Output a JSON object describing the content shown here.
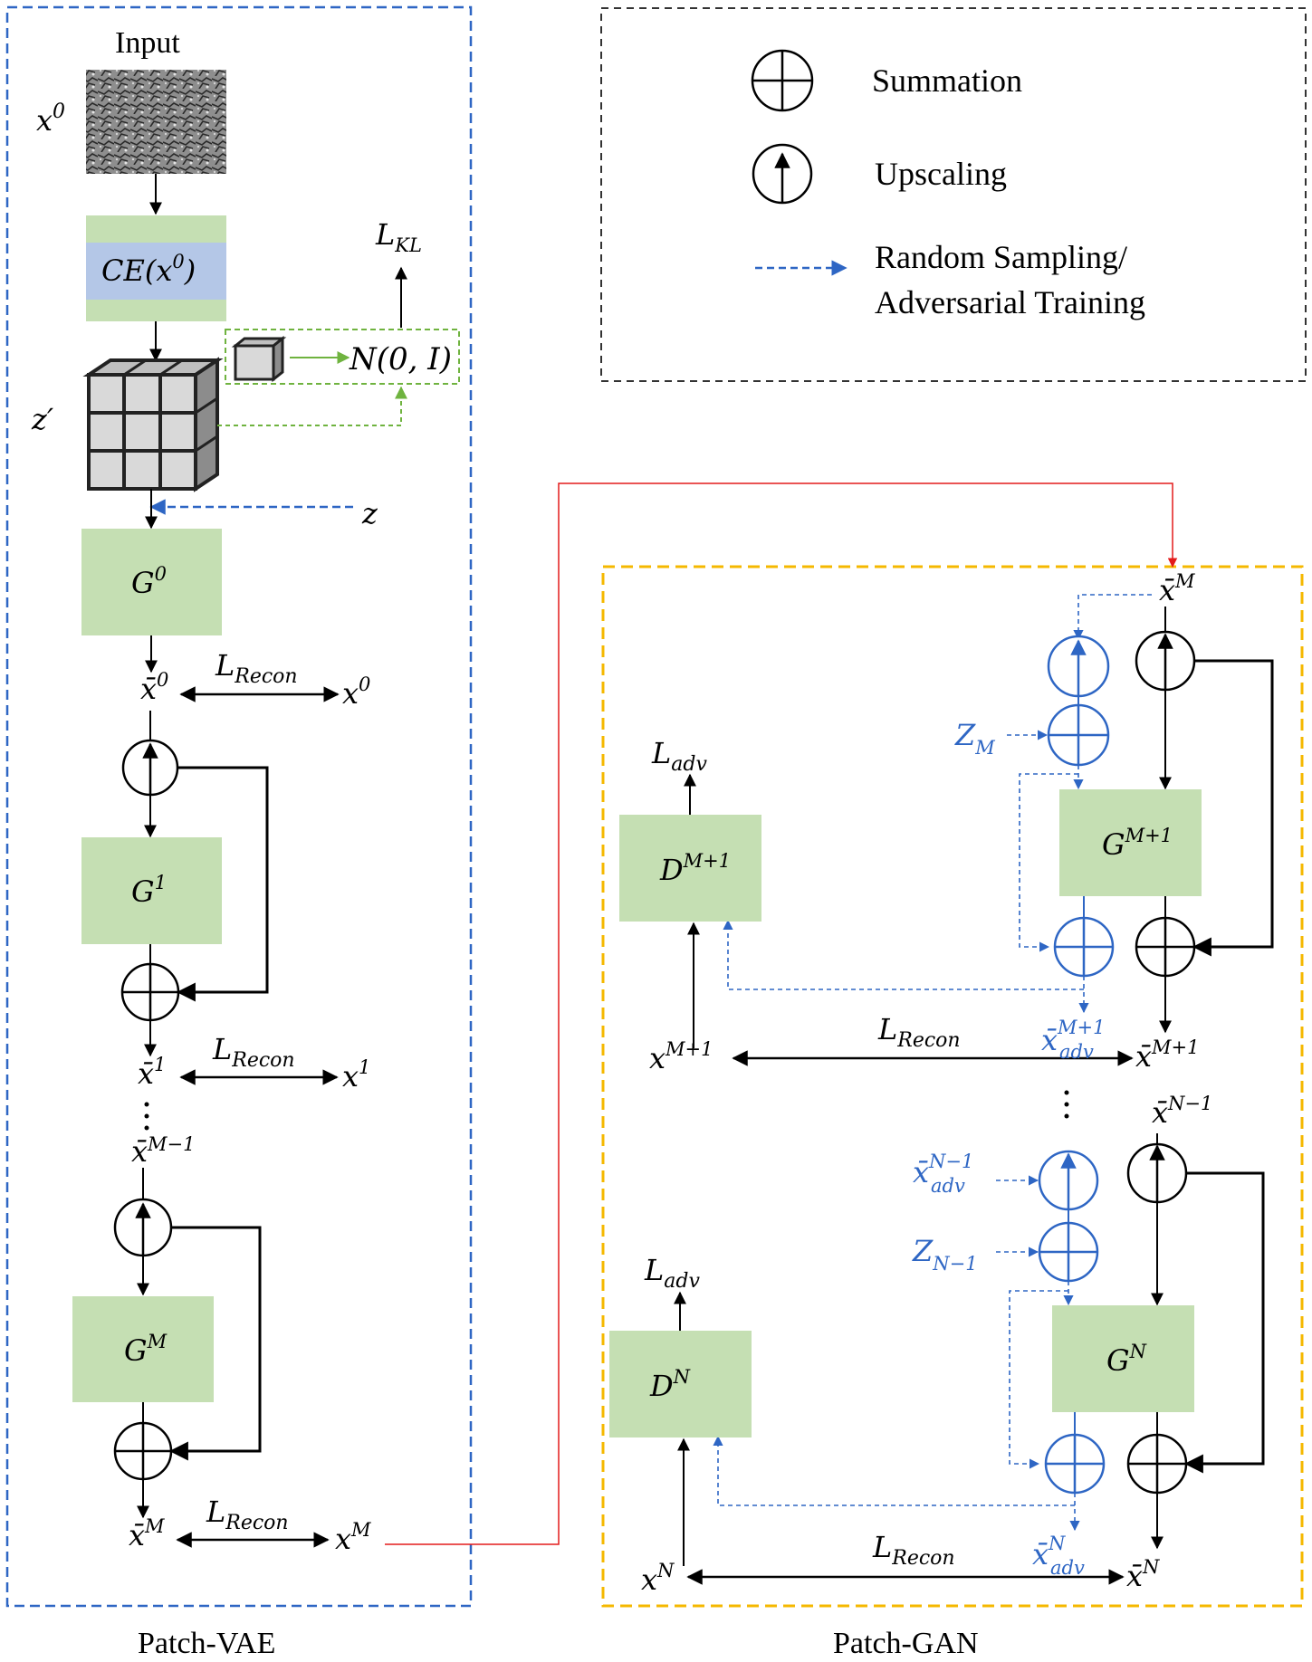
{
  "legend": {
    "summation": "Summation",
    "upscaling": "Upscaling",
    "sampling_line1": "Random Sampling/",
    "sampling_line2": "Adversarial Training"
  },
  "vae": {
    "caption": "Patch-VAE",
    "input_label": "Input",
    "x0": "x",
    "x0_sup": "0",
    "ce_label": "CE(x",
    "ce_sup": "0",
    "ce_close": ")",
    "kl_main": "L",
    "kl_sub": "KL",
    "normal": "N(0, I)",
    "zprime": "z′",
    "z": "z",
    "g0": "G",
    "g0_sup": "0",
    "g1": "G",
    "g1_sup": "1",
    "gm": "G",
    "gm_sup": "M",
    "recon_main": "L",
    "recon_sub": "Recon",
    "xbar0": "x̄",
    "xbar0_sup": "0",
    "x0r": "x",
    "x0r_sup": "0",
    "xbar1": "x̄",
    "xbar1_sup": "1",
    "x1r": "x",
    "x1r_sup": "1",
    "xbarm1": "x̄",
    "xbarm1_sup": "M−1",
    "xbarm": "x̄",
    "xbarm_sup": "M",
    "xm": "x",
    "xm_sup": "M"
  },
  "gan": {
    "caption": "Patch-GAN",
    "xbarM_top": "x̄",
    "xbarM_top_sup": "M",
    "zm": "Z",
    "zm_sub": "M",
    "ladv": "L",
    "ladv_sub": "adv",
    "dm1": "D",
    "dm1_sup": "M+1",
    "gm1": "G",
    "gm1_sup": "M+1",
    "xm1": "x",
    "xm1_sup": "M+1",
    "recon_main": "L",
    "recon_sub": "Recon",
    "xadv_m1": "x̄",
    "xadv_m1_sup": "M+1",
    "xadv_sub": "adv",
    "xbarm1": "x̄",
    "xbarm1_sup": "M+1",
    "xbarn1": "x̄",
    "xbarn1_sup": "N−1",
    "xadv_n1": "x̄",
    "xadv_n1_sup": "N−1",
    "zn1": "Z",
    "zn1_sub": "N−1",
    "dn": "D",
    "dn_sup": "N",
    "gn": "G",
    "gn_sup": "N",
    "xn": "x",
    "xn_sup": "N",
    "xadv_n": "x̄",
    "xadv_n_sup": "N",
    "xbarn": "x̄",
    "xbarn_sup": "N"
  },
  "colors": {
    "blue": "#2e66c4",
    "green_box": "#c5dfb3",
    "ce_band": "#b4c7e7",
    "orange": "#f5b800",
    "red": "#e31b1b"
  }
}
